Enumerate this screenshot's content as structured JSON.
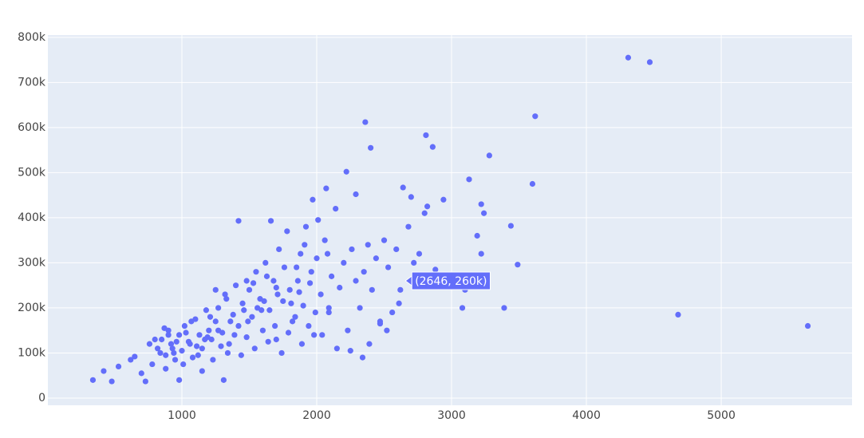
{
  "chart_data": {
    "type": "scatter",
    "color": "#636efa",
    "grid": true,
    "xlim": [
      6,
      5970
    ],
    "ylim": [
      -16000,
      805000
    ],
    "xticks": [
      1000,
      2000,
      3000,
      4000,
      5000
    ],
    "yticks": [
      0,
      {
        "value": 100000,
        "label": "100k"
      },
      {
        "value": 200000,
        "label": "200k"
      },
      {
        "value": 300000,
        "label": "300k"
      },
      {
        "value": 400000,
        "label": "400k"
      },
      {
        "value": 500000,
        "label": "500k"
      },
      {
        "value": 600000,
        "label": "600k"
      },
      {
        "value": 700000,
        "label": "700k"
      },
      {
        "value": 800000,
        "label": "800k"
      }
    ],
    "x": [
      4310,
      4470,
      4680,
      5642,
      3620,
      2360,
      2810,
      2860,
      2400,
      3280,
      2220,
      3130,
      3600,
      2640,
      2070,
      2290,
      2700,
      2940,
      1970,
      3220,
      2820,
      3240,
      1420,
      1660,
      3440,
      3190,
      3490,
      3220,
      3390,
      3080,
      3100,
      340,
      480,
      420,
      530,
      730,
      980,
      1310,
      620,
      700,
      650,
      780,
      820,
      850,
      880,
      900,
      920,
      950,
      980,
      1000,
      1020,
      1050,
      1080,
      1100,
      1130,
      1150,
      1180,
      1200,
      1220,
      1250,
      1270,
      1300,
      1320,
      1350,
      1380,
      1400,
      1420,
      1450,
      1480,
      1500,
      1520,
      1550,
      1580,
      1600,
      1620,
      1650,
      1680,
      1700,
      1720,
      1750,
      1780,
      1800,
      1820,
      1850,
      1880,
      1900,
      1920,
      1950,
      1980,
      2000,
      2030,
      2060,
      2090,
      2110,
      2140,
      2170,
      2200,
      2230,
      2260,
      2290,
      2320,
      2350,
      2380,
      2410,
      2440,
      2470,
      2500,
      2530,
      2560,
      2590,
      2620,
      2680,
      2720,
      2760,
      2800,
      2880,
      2150,
      2250,
      2340,
      1150,
      760,
      880,
      940,
      1010,
      1060,
      1120,
      1170,
      1230,
      1290,
      1340,
      1390,
      1440,
      1490,
      1540,
      1590,
      1640,
      1690,
      1740,
      1790,
      1840,
      1890,
      1940,
      1990,
      2040,
      2090,
      2390,
      2520,
      2470,
      2610,
      1250,
      1330,
      1480,
      1560,
      1630,
      1710,
      1760,
      1860,
      1910,
      2010,
      2080,
      1960,
      1870,
      1810,
      1700,
      1610,
      1530,
      1460,
      1360,
      1270,
      1190,
      1110,
      1030,
      960,
      900,
      840,
      800,
      870,
      930,
      1070,
      1210
    ],
    "values": [
      755000,
      745000,
      185000,
      160000,
      625000,
      612000,
      583000,
      557000,
      555000,
      538000,
      502000,
      485000,
      475000,
      467000,
      465000,
      452000,
      446000,
      440000,
      440000,
      430000,
      425000,
      410000,
      393000,
      393000,
      382000,
      360000,
      296000,
      320000,
      200000,
      200000,
      240000,
      40000,
      37000,
      60000,
      70000,
      37000,
      40000,
      40000,
      85000,
      55000,
      92000,
      75000,
      110000,
      130000,
      95000,
      150000,
      120000,
      85000,
      140000,
      105000,
      160000,
      125000,
      90000,
      175000,
      140000,
      110000,
      195000,
      150000,
      130000,
      170000,
      200000,
      145000,
      230000,
      120000,
      185000,
      250000,
      160000,
      210000,
      135000,
      240000,
      180000,
      280000,
      220000,
      150000,
      300000,
      195000,
      260000,
      130000,
      330000,
      215000,
      370000,
      240000,
      170000,
      290000,
      320000,
      205000,
      380000,
      255000,
      140000,
      310000,
      230000,
      350000,
      190000,
      270000,
      420000,
      245000,
      300000,
      150000,
      330000,
      260000,
      200000,
      280000,
      340000,
      240000,
      310000,
      170000,
      350000,
      290000,
      190000,
      330000,
      240000,
      380000,
      300000,
      320000,
      410000,
      285000,
      110000,
      105000,
      90000,
      60000,
      120000,
      65000,
      100000,
      75000,
      120000,
      95000,
      130000,
      85000,
      115000,
      100000,
      140000,
      95000,
      170000,
      110000,
      195000,
      125000,
      160000,
      100000,
      145000,
      180000,
      120000,
      160000,
      190000,
      140000,
      200000,
      120000,
      150000,
      165000,
      210000,
      240000,
      220000,
      260000,
      200000,
      270000,
      230000,
      290000,
      260000,
      340000,
      395000,
      320000,
      280000,
      235000,
      210000,
      245000,
      215000,
      255000,
      195000,
      170000,
      150000,
      135000,
      115000,
      145000,
      125000,
      140000,
      100000,
      130000,
      155000,
      110000,
      170000,
      180000
    ],
    "hover": {
      "x": 2646,
      "y": 260000,
      "label": "(2646, 260k)"
    }
  }
}
